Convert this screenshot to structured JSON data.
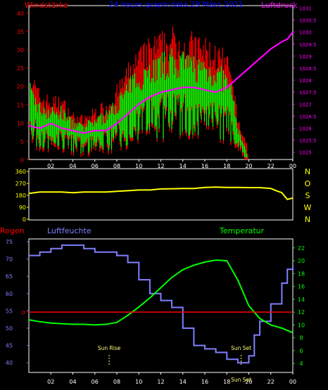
{
  "colors": {
    "wind_gust": "#ff0000",
    "wind_avg": "#00ff00",
    "pressure": "#ff00ff",
    "direction": "#ffff00",
    "rain": "#ff0000",
    "humidity": "#7f7fff",
    "temperature": "#00ff00",
    "frame": "#ffffff",
    "title": "#0000ff",
    "wind_title": "#ff0000",
    "pressure_title": "#ff00ff",
    "direction_ticks": "#ffff00",
    "hum_ticks": "#7f7fff",
    "temp_ticks": "#00ff00",
    "sun_labels": "#ffff80"
  },
  "chart_data": [
    {
      "type": "line",
      "title": "24 hours graph data  29 März 2021",
      "left_axis_label": "Windstärke",
      "right_axis_label": "Luftdruck",
      "x_ticks": [
        "02",
        "04",
        "06",
        "08",
        "10",
        "12",
        "14",
        "16",
        "18",
        "20",
        "22",
        "00"
      ],
      "x_hours": [
        0,
        2,
        4,
        6,
        8,
        10,
        12,
        14,
        16,
        18,
        20,
        22,
        24
      ],
      "ylim_left": [
        0,
        42
      ],
      "ylim_right": [
        1024.7,
        1031.1
      ],
      "y_ticks_left": [
        "0",
        "5",
        "10",
        "15",
        "20",
        "25",
        "30",
        "35",
        "40"
      ],
      "y_ticks_right": [
        "1025",
        "1025.5",
        "1026",
        "1026.5",
        "1027",
        "1027.5",
        "1028",
        "1028.5",
        "1029",
        "1029.5",
        "1030",
        "1030.5",
        "1031"
      ],
      "series": [
        {
          "name": "Windstärke",
          "type": "area",
          "x": [
            0,
            1,
            2,
            3,
            4,
            5,
            6,
            7,
            8,
            9,
            10,
            11,
            12,
            13,
            14,
            15,
            16,
            17,
            18,
            18.5,
            19,
            19.5,
            20,
            24
          ],
          "values": [
            18,
            13,
            12,
            12,
            9,
            8,
            10,
            11,
            14,
            18,
            21,
            23,
            24,
            25,
            24,
            24,
            23,
            22,
            20,
            16,
            8,
            4,
            0,
            0
          ]
        },
        {
          "name": "Luftdruck",
          "type": "line",
          "x": [
            0,
            1,
            2,
            3,
            4,
            5,
            6,
            7,
            8,
            9,
            10,
            11,
            12,
            13,
            14,
            15,
            16,
            17,
            18,
            19,
            20,
            21,
            22,
            23,
            23.5,
            24
          ],
          "values": [
            1026.1,
            1026.0,
            1026.2,
            1026.0,
            1025.9,
            1025.8,
            1025.9,
            1025.9,
            1026.2,
            1026.6,
            1027.0,
            1027.3,
            1027.5,
            1027.6,
            1027.7,
            1027.7,
            1027.6,
            1027.5,
            1027.7,
            1028.1,
            1028.5,
            1028.9,
            1029.3,
            1029.6,
            1029.7,
            1030.0
          ]
        }
      ]
    },
    {
      "type": "line",
      "right_axis_letters": [
        "N",
        "W",
        "S",
        "O",
        "N"
      ],
      "ylim": [
        0,
        360
      ],
      "y_ticks": [
        "0",
        "90",
        "180",
        "270",
        "360"
      ],
      "series": [
        {
          "name": "Windrichtung",
          "x": [
            0,
            0.5,
            1,
            2,
            3,
            4,
            5,
            6,
            7,
            8,
            9,
            10,
            11,
            12,
            13,
            14,
            15,
            16,
            17,
            18,
            19,
            20,
            21,
            22,
            22.5,
            23,
            23.5,
            24
          ],
          "values": [
            195,
            200,
            205,
            205,
            205,
            200,
            205,
            205,
            205,
            210,
            215,
            220,
            220,
            228,
            230,
            232,
            232,
            240,
            242,
            240,
            240,
            238,
            238,
            232,
            215,
            200,
            150,
            160
          ]
        }
      ]
    },
    {
      "type": "line",
      "left_top_label": "Regen",
      "humidity_label": "Luftfeuchte",
      "temperature_label": "Temperatur",
      "ylim_humidity": [
        37.2,
        75.8
      ],
      "ylim_temperature": [
        2.6,
        23.4
      ],
      "y_ticks_humidity": [
        "40",
        "45",
        "50",
        "55",
        "60",
        "65",
        "70",
        "75"
      ],
      "y_ticks_temperature": [
        "4",
        "6",
        "8",
        "10",
        "12",
        "14",
        "16",
        "18",
        "20",
        "22"
      ],
      "rain_value": 0,
      "rain_tick_label": "0",
      "series": [
        {
          "name": "Luftfeuchte",
          "x": [
            0,
            1,
            2,
            3,
            4,
            5,
            6,
            7,
            8,
            9,
            10,
            11,
            12,
            13,
            14,
            15,
            16,
            17,
            18,
            19,
            20,
            20.5,
            21,
            22,
            23,
            23.5,
            24
          ],
          "values": [
            71,
            72,
            73,
            74,
            74,
            73,
            72,
            72,
            71,
            69,
            64,
            60,
            58,
            56,
            50,
            45,
            44,
            43,
            41,
            40,
            42,
            48,
            52,
            57,
            63,
            67,
            68
          ]
        },
        {
          "name": "Temperatur",
          "x": [
            0,
            1,
            2,
            3,
            4,
            5,
            6,
            7,
            8,
            9,
            10,
            11,
            12,
            13,
            14,
            15,
            16,
            17,
            18,
            19,
            20,
            21,
            22,
            23,
            24
          ],
          "values": [
            10.8,
            10.5,
            10.3,
            10.2,
            10.1,
            10.1,
            10.0,
            10.1,
            10.4,
            11.5,
            12.8,
            14.2,
            15.8,
            17.4,
            18.6,
            19.3,
            19.8,
            20.1,
            20.0,
            17.0,
            13.0,
            11.0,
            10.0,
            9.5,
            8.8
          ]
        }
      ],
      "annotations": [
        {
          "label": "Sun Rise",
          "hour": 7.3
        },
        {
          "label": "Sun Set",
          "hour": 19.3
        },
        {
          "label": "Sun Set",
          "hour": 19.3
        }
      ]
    }
  ]
}
